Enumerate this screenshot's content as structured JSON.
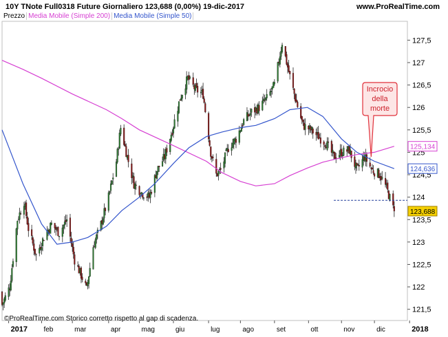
{
  "header": {
    "title": "10Y TNote Full0318 Future   Giornaliero   123,688 (0,00%)   19-dic-2017",
    "site": "www.ProRealTime.com"
  },
  "legend": {
    "price": "Prezzo",
    "ma200": "Media Mobile (Simple 200)",
    "ma50": "Media Mobile (Simple 50)"
  },
  "footer": "©ProRealTime.com  Storico corretto rispetto al gap di scadenza.",
  "annotation": {
    "lines": [
      "Incrocio",
      "della",
      "morte"
    ]
  },
  "colors": {
    "up_candle": "#2e7d32",
    "down_candle": "#8b1a1a",
    "ma200": "#d63fd2",
    "ma50": "#3355cc",
    "annotation_border": "#e0303a",
    "annotation_fill": "#fde6e6",
    "support_line": "#1f3a9a"
  },
  "chart_data": {
    "type": "candlestick",
    "x_type": "date",
    "x_range": [
      "2016-12-27",
      "2017-12-31"
    ],
    "ylim": [
      121.25,
      127.92
    ],
    "y_ticks": [
      "121,5",
      "122",
      "122,5",
      "123",
      "123,5",
      "124",
      "124,5",
      "125",
      "125,5",
      "126",
      "126,5",
      "127",
      "127,5"
    ],
    "y_tick_values": [
      121.5,
      122,
      122.5,
      123,
      123.5,
      124,
      124.5,
      125,
      125.5,
      126,
      126.5,
      127,
      127.5
    ],
    "x_ticks": [
      {
        "label": "2017",
        "date": "2017-01-02",
        "bold": true
      },
      {
        "label": "feb",
        "date": "2017-02-01"
      },
      {
        "label": "mar",
        "date": "2017-03-01"
      },
      {
        "label": "apr",
        "date": "2017-04-03"
      },
      {
        "label": "mag",
        "date": "2017-05-01"
      },
      {
        "label": "giu",
        "date": "2017-06-01"
      },
      {
        "label": "lug",
        "date": "2017-07-03"
      },
      {
        "label": "ago",
        "date": "2017-08-01"
      },
      {
        "label": "set",
        "date": "2017-09-01"
      },
      {
        "label": "ott",
        "date": "2017-10-02"
      },
      {
        "label": "nov",
        "date": "2017-11-01"
      },
      {
        "label": "dic",
        "date": "2017-12-01"
      },
      {
        "label": "2018",
        "date": "2018-01-02",
        "bold": true
      }
    ],
    "price_path": [
      [
        "2016-12-27",
        121.6
      ],
      [
        "2017-01-03",
        122.0
      ],
      [
        "2017-01-10",
        123.5
      ],
      [
        "2017-01-16",
        123.9
      ],
      [
        "2017-01-20",
        123.3
      ],
      [
        "2017-01-27",
        122.7
      ],
      [
        "2017-02-03",
        123.1
      ],
      [
        "2017-02-10",
        123.4
      ],
      [
        "2017-02-17",
        123.2
      ],
      [
        "2017-02-24",
        123.5
      ],
      [
        "2017-03-03",
        122.6
      ],
      [
        "2017-03-10",
        122.2
      ],
      [
        "2017-03-14",
        121.95
      ],
      [
        "2017-03-20",
        122.9
      ],
      [
        "2017-03-27",
        123.4
      ],
      [
        "2017-04-03",
        124.0
      ],
      [
        "2017-04-10",
        124.8
      ],
      [
        "2017-04-14",
        125.55
      ],
      [
        "2017-04-20",
        124.9
      ],
      [
        "2017-04-26",
        124.3
      ],
      [
        "2017-05-03",
        124.1
      ],
      [
        "2017-05-10",
        124.0
      ],
      [
        "2017-05-17",
        124.6
      ],
      [
        "2017-05-24",
        124.9
      ],
      [
        "2017-05-31",
        125.5
      ],
      [
        "2017-06-07",
        126.2
      ],
      [
        "2017-06-14",
        126.65
      ],
      [
        "2017-06-21",
        126.4
      ],
      [
        "2017-06-28",
        126.3
      ],
      [
        "2017-07-05",
        125.0
      ],
      [
        "2017-07-10",
        124.5
      ],
      [
        "2017-07-14",
        124.6
      ],
      [
        "2017-07-21",
        125.1
      ],
      [
        "2017-07-28",
        125.3
      ],
      [
        "2017-08-04",
        125.7
      ],
      [
        "2017-08-11",
        125.9
      ],
      [
        "2017-08-18",
        126.0
      ],
      [
        "2017-08-25",
        126.2
      ],
      [
        "2017-09-01",
        126.5
      ],
      [
        "2017-09-08",
        127.45
      ],
      [
        "2017-09-13",
        126.9
      ],
      [
        "2017-09-20",
        126.2
      ],
      [
        "2017-09-27",
        125.6
      ],
      [
        "2017-10-04",
        125.5
      ],
      [
        "2017-10-11",
        125.35
      ],
      [
        "2017-10-18",
        125.2
      ],
      [
        "2017-10-25",
        124.9
      ],
      [
        "2017-11-01",
        125.0
      ],
      [
        "2017-11-08",
        125.05
      ],
      [
        "2017-11-15",
        124.6
      ],
      [
        "2017-11-22",
        124.9
      ],
      [
        "2017-11-29",
        124.6
      ],
      [
        "2017-12-06",
        124.5
      ],
      [
        "2017-12-12",
        124.2
      ],
      [
        "2017-12-19",
        123.69
      ]
    ],
    "ma200_path": [
      [
        "2016-12-27",
        127.05
      ],
      [
        "2017-01-15",
        126.85
      ],
      [
        "2017-02-01",
        126.65
      ],
      [
        "2017-03-01",
        126.3
      ],
      [
        "2017-04-01",
        125.95
      ],
      [
        "2017-04-15",
        125.75
      ],
      [
        "2017-05-01",
        125.5
      ],
      [
        "2017-06-01",
        125.15
      ],
      [
        "2017-07-01",
        124.8
      ],
      [
        "2017-07-15",
        124.55
      ],
      [
        "2017-08-01",
        124.35
      ],
      [
        "2017-08-15",
        124.25
      ],
      [
        "2017-09-01",
        124.3
      ],
      [
        "2017-09-15",
        124.48
      ],
      [
        "2017-10-01",
        124.65
      ],
      [
        "2017-10-15",
        124.78
      ],
      [
        "2017-11-01",
        124.88
      ],
      [
        "2017-11-15",
        124.95
      ],
      [
        "2017-12-01",
        125.0
      ],
      [
        "2017-12-19",
        125.134
      ]
    ],
    "ma50_path": [
      [
        "2016-12-27",
        125.5
      ],
      [
        "2017-01-15",
        124.3
      ],
      [
        "2017-02-01",
        123.4
      ],
      [
        "2017-02-15",
        122.95
      ],
      [
        "2017-03-01",
        123.0
      ],
      [
        "2017-03-15",
        123.1
      ],
      [
        "2017-04-01",
        123.35
      ],
      [
        "2017-04-15",
        123.7
      ],
      [
        "2017-05-01",
        124.0
      ],
      [
        "2017-05-15",
        124.3
      ],
      [
        "2017-06-01",
        124.75
      ],
      [
        "2017-06-15",
        125.1
      ],
      [
        "2017-07-01",
        125.35
      ],
      [
        "2017-07-15",
        125.45
      ],
      [
        "2017-08-01",
        125.55
      ],
      [
        "2017-08-15",
        125.6
      ],
      [
        "2017-09-01",
        125.75
      ],
      [
        "2017-09-15",
        125.95
      ],
      [
        "2017-10-01",
        126.0
      ],
      [
        "2017-10-15",
        125.8
      ],
      [
        "2017-11-01",
        125.3
      ],
      [
        "2017-11-15",
        125.0
      ],
      [
        "2017-12-01",
        124.8
      ],
      [
        "2017-12-19",
        124.636
      ]
    ],
    "labels": {
      "ma200_value": "125,134",
      "ma200_level": 125.134,
      "ma50_value": "124,636",
      "ma50_level": 124.636,
      "last_price_value": "123,688",
      "last_price_level": 123.688
    },
    "support_level": 123.93,
    "support_from": "2017-10-25",
    "annotation_target": [
      "2017-11-28",
      124.9
    ]
  }
}
